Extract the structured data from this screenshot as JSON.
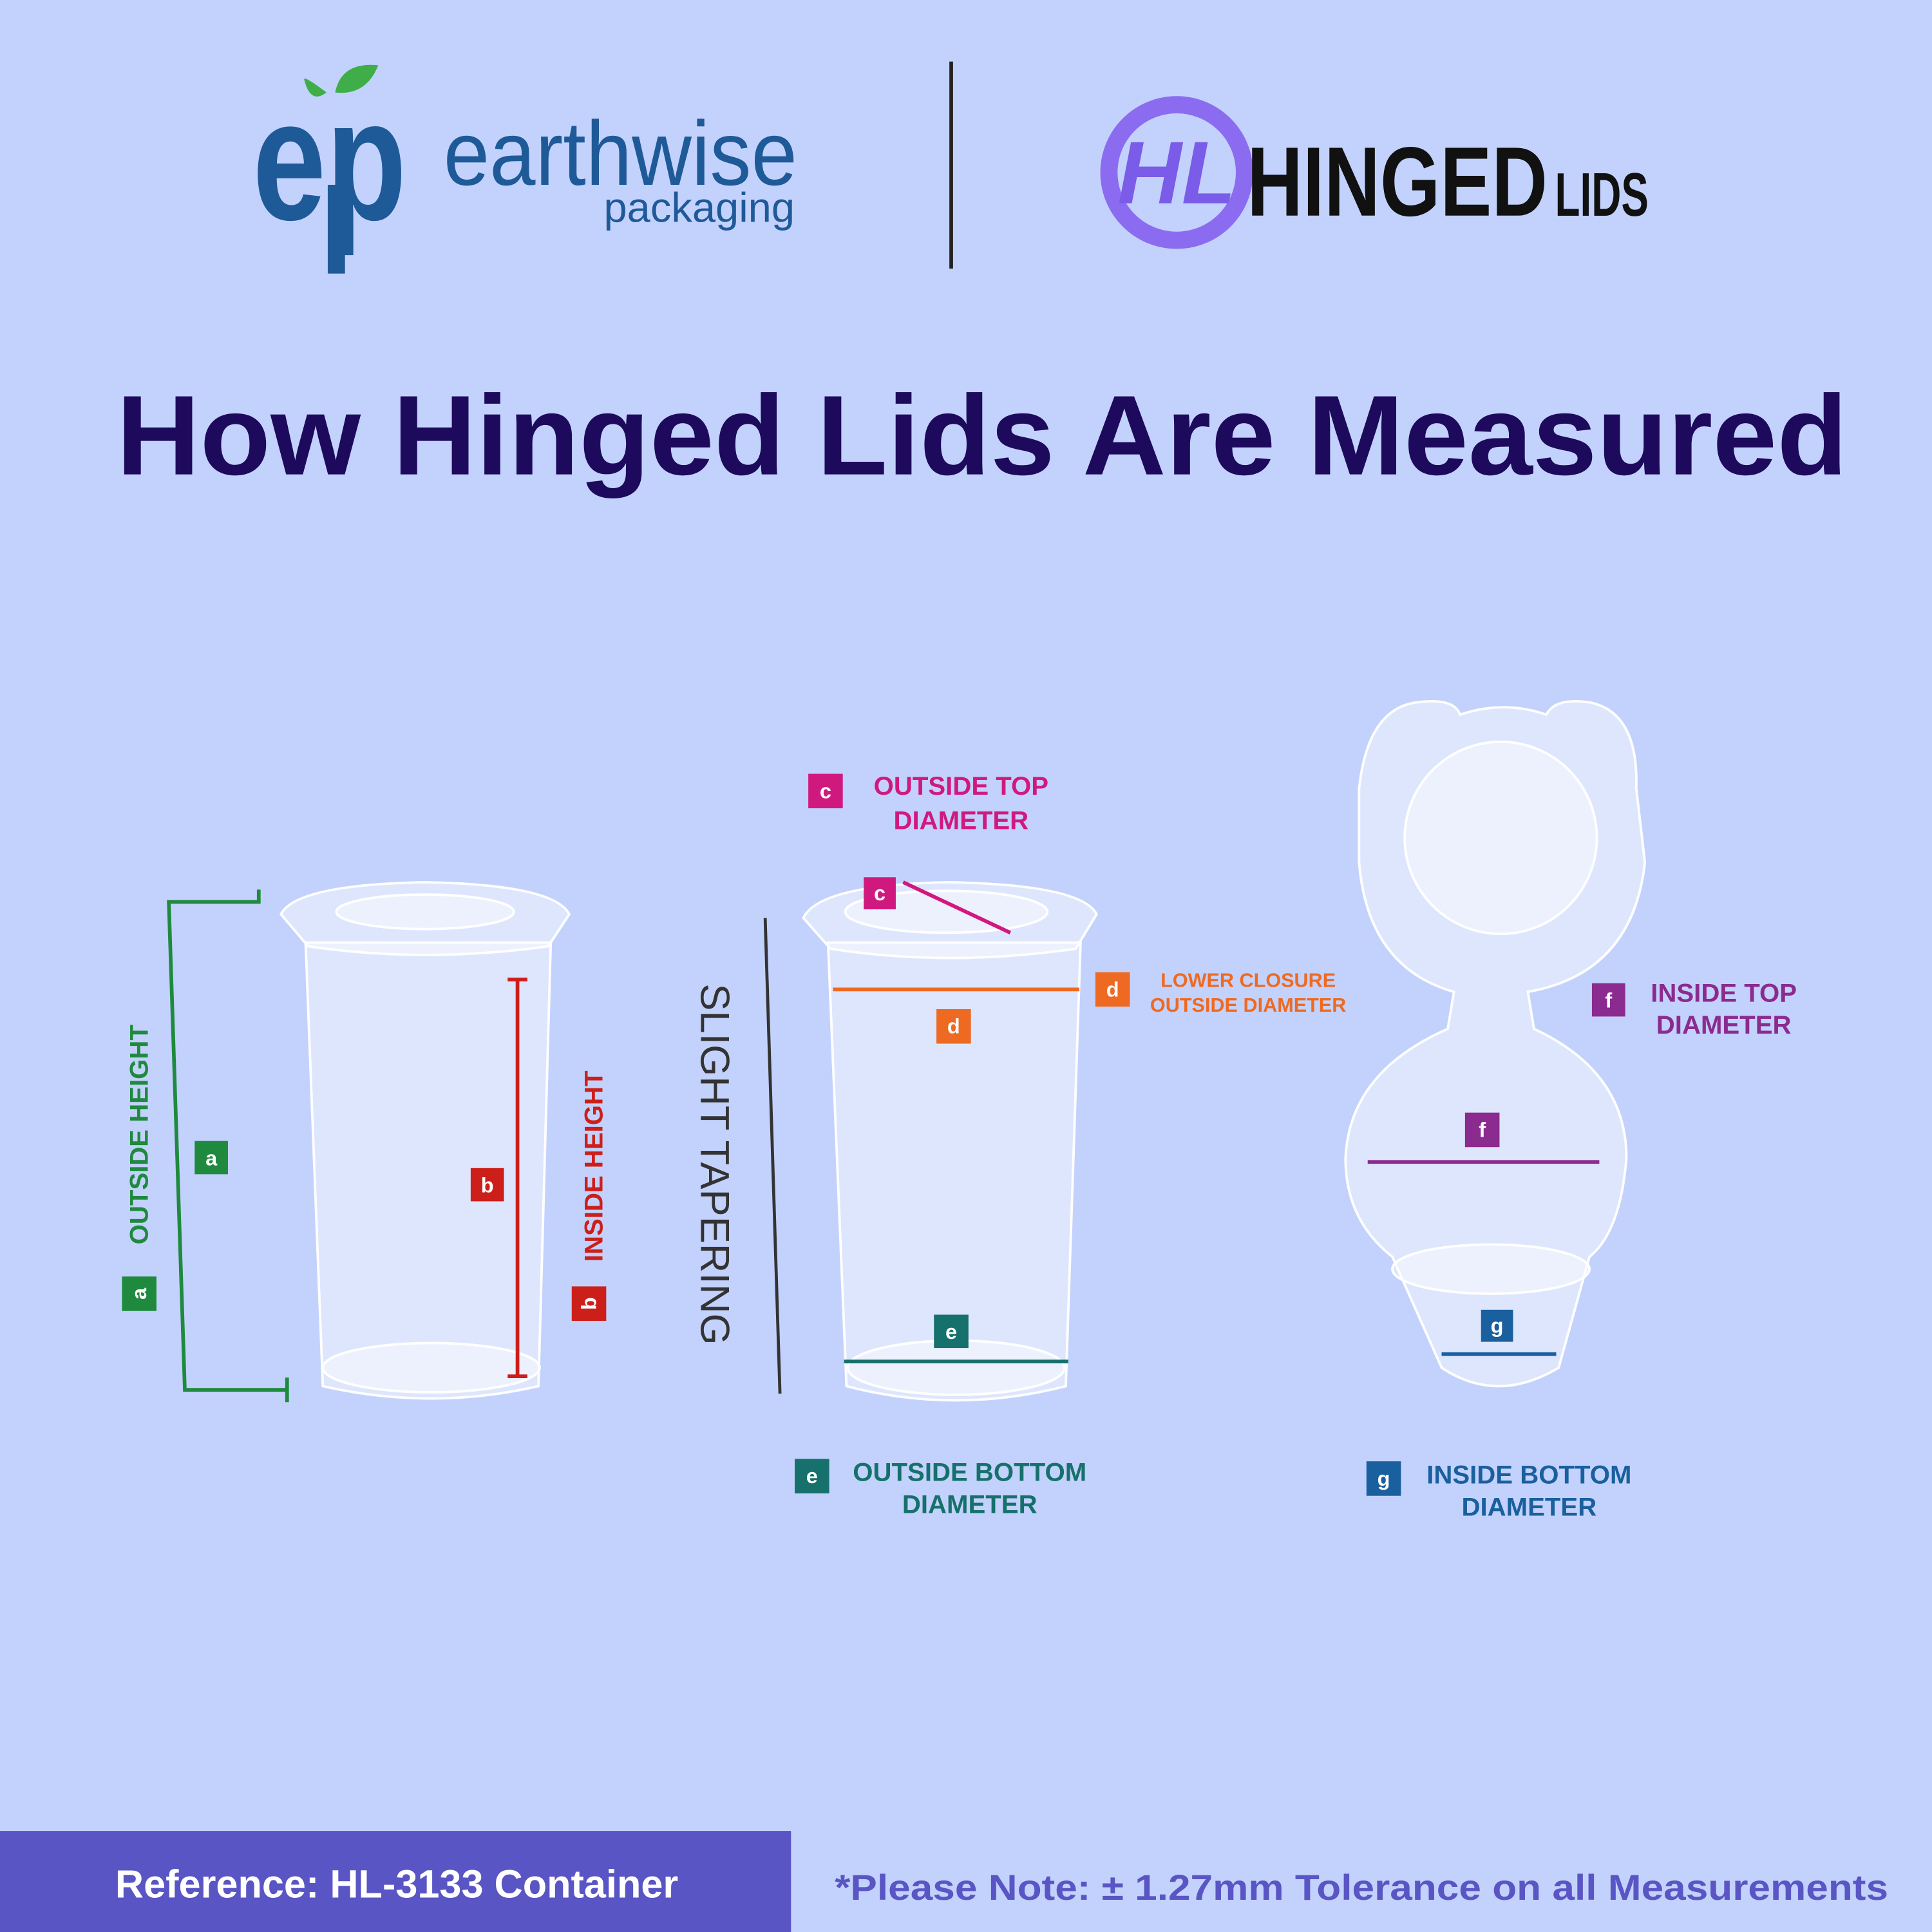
{
  "header": {
    "earthwise_logo": {
      "monogram": "ep",
      "name": "earthwise",
      "tagline": "packaging"
    },
    "hinged_logo": {
      "monogram": "HL",
      "name": "HINGED",
      "suffix": "LIDS"
    }
  },
  "title": "How Hinged Lids Are Measured",
  "measurements": [
    {
      "letter": "a",
      "lines": [
        "OUTSIDE HEIGHT"
      ]
    },
    {
      "letter": "b",
      "lines": [
        "INSIDE HEIGHT"
      ]
    },
    {
      "letter": "c",
      "lines": [
        "OUTSIDE TOP",
        "DIAMETER"
      ]
    },
    {
      "letter": "d",
      "lines": [
        "LOWER CLOSURE",
        "OUTSIDE DIAMETER"
      ]
    },
    {
      "letter": "e",
      "lines": [
        "OUTSIDE BOTTOM",
        "DIAMETER"
      ]
    },
    {
      "letter": "f",
      "lines": [
        "INSIDE TOP",
        "DIAMETER"
      ]
    },
    {
      "letter": "g",
      "lines": [
        "INSIDE BOTTOM",
        "DIAMETER"
      ]
    }
  ],
  "annotation": "SLIGHT TAPERING",
  "footer": {
    "reference": "Reference: HL-3133 Container",
    "note": "*Please Note: ± 1.27mm Tolerance on all Measurements"
  }
}
